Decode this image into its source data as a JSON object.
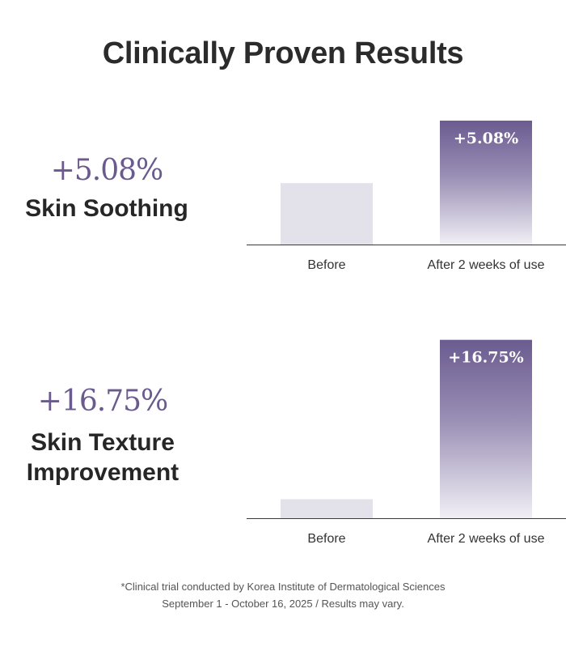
{
  "title": "Clinically Proven Results",
  "colors": {
    "accent": "#6a5a8e",
    "bar_before": "#e3e1ea",
    "bar_after_top": "#6b5b90",
    "bar_after_bottom": "#f1eff5",
    "axis": "#3a3a3a"
  },
  "blocks": [
    {
      "stat_value": "+5.08%",
      "stat_label": "Skin Soothing"
    },
    {
      "stat_value": "+16.75%",
      "stat_label": "Skin Texture\nImprovement"
    }
  ],
  "chart_data": [
    {
      "type": "bar",
      "categories": [
        "Before",
        "After 2 weeks of use"
      ],
      "values": [
        100,
        105.08
      ],
      "data_labels": [
        "",
        "+5.08%"
      ],
      "ylim": [
        95,
        106
      ]
    },
    {
      "type": "bar",
      "categories": [
        "Before",
        "After 2 weeks of use"
      ],
      "values": [
        100,
        116.75
      ],
      "data_labels": [
        "",
        "+16.75%"
      ],
      "ylim": [
        98,
        118
      ]
    }
  ],
  "footnote": {
    "line1": "*Clinical trial conducted by Korea Institute of Dermatological Sciences",
    "line2": "September 1 - October 16, 2025 / Results may vary."
  }
}
